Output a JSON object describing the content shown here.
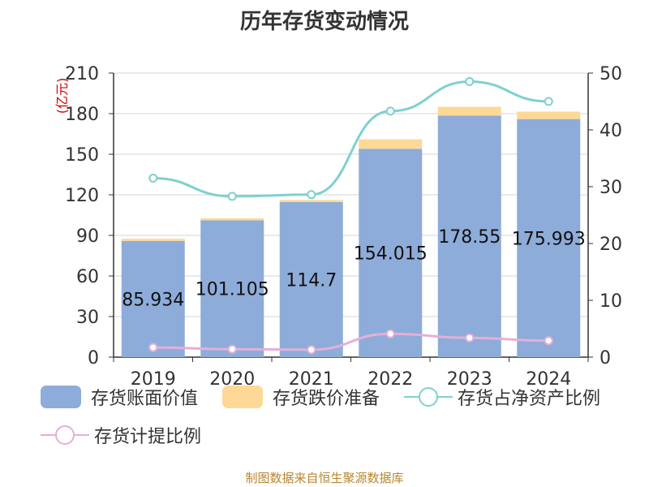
{
  "title": "历年存货变动情况",
  "footer": "制图数据来自恒生聚源数据库",
  "colors": {
    "book_value": "#8eacd9",
    "provision": "#fdd896",
    "ratio_net_assets": "#7fd0d0",
    "provision_ratio": "#e3b0d8",
    "left_unit": "#cc0000",
    "axis_text": "#333333",
    "grid": "#d5d5d5"
  },
  "legend": [
    {
      "label": "存货账面价值",
      "type": "bar",
      "color": "#8eacd9"
    },
    {
      "label": "存货跌价准备",
      "type": "bar",
      "color": "#fdd896"
    },
    {
      "label": "存货占净资产比例",
      "type": "line",
      "color": "#7fd0d0"
    },
    {
      "label": "存货计提比例",
      "type": "line",
      "color": "#e3b0d8"
    }
  ],
  "chart_data": {
    "type": "bar",
    "title": "历年存货变动情况",
    "categories": [
      "2019",
      "2020",
      "2021",
      "2022",
      "2023",
      "2024"
    ],
    "left_axis": {
      "unit": "(亿元)",
      "min": 0,
      "max": 210,
      "ticks": [
        0,
        30,
        60,
        90,
        120,
        150,
        180,
        210
      ]
    },
    "right_axis": {
      "min": 0,
      "max": 50,
      "ticks": [
        0,
        10,
        20,
        30,
        40,
        50
      ]
    },
    "grid": true,
    "series": [
      {
        "name": "存货账面价值",
        "kind": "bar",
        "axis": "left",
        "stack": "inv",
        "values": [
          85.934,
          101.105,
          114.7,
          154.015,
          178.55,
          175.993
        ],
        "labels": [
          "85.934",
          "101.105",
          "114.7",
          "154.015",
          "178.55",
          "175.993"
        ]
      },
      {
        "name": "存货跌价准备",
        "kind": "bar",
        "axis": "left",
        "stack": "inv",
        "values": [
          1.5,
          1.5,
          1.5,
          7.0,
          6.5,
          5.5
        ]
      },
      {
        "name": "存货占净资产比例",
        "kind": "line",
        "axis": "right",
        "values": [
          31.5,
          28.3,
          28.6,
          43.3,
          48.5,
          45.0
        ]
      },
      {
        "name": "存货计提比例",
        "kind": "line",
        "axis": "right",
        "values": [
          1.7,
          1.4,
          1.3,
          4.1,
          3.4,
          2.9
        ]
      }
    ]
  }
}
